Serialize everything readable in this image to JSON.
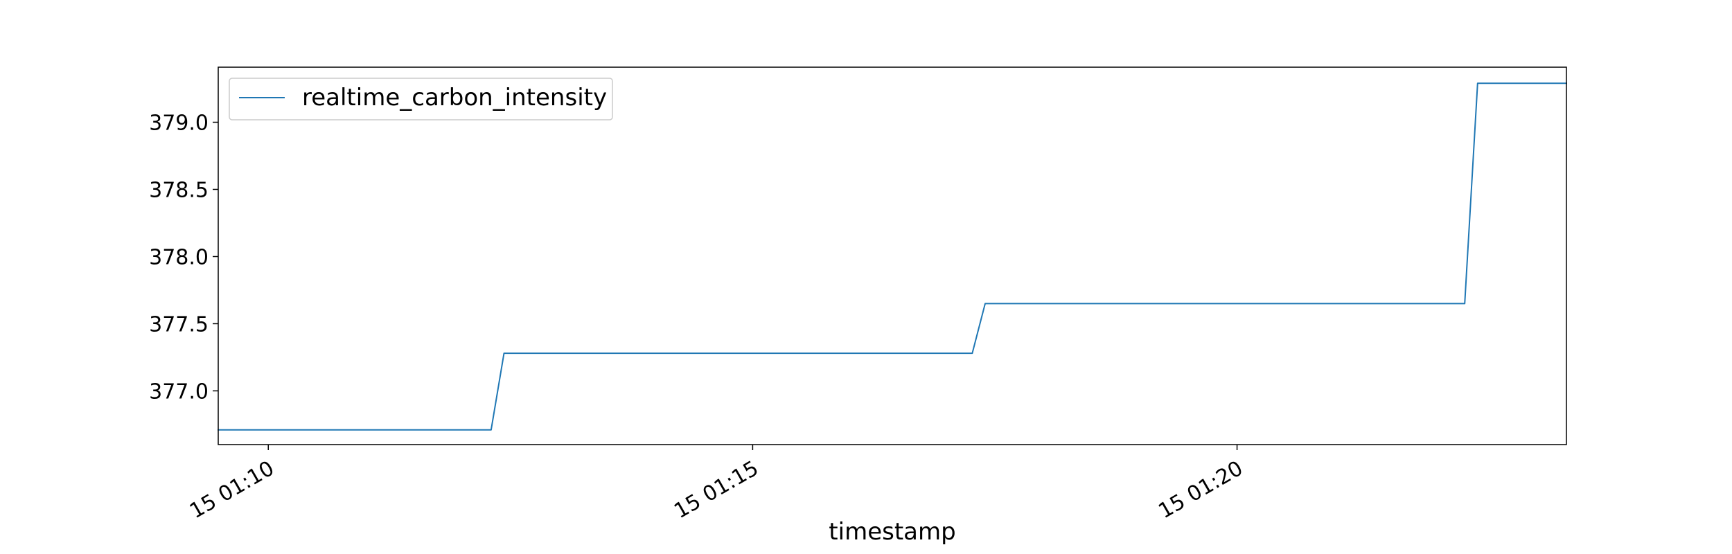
{
  "chart_data": {
    "type": "line",
    "title": "",
    "xlabel": "timestamp",
    "ylabel": "",
    "grid": false,
    "legend_position": "top-left",
    "x_axis": {
      "type": "time",
      "range": [
        "01:09:29",
        "01:23:24"
      ],
      "ticks": [
        "01:10:00",
        "01:15:00",
        "01:20:00"
      ],
      "tick_labels": [
        "15 01:10",
        "15 01:15",
        "15 01:20"
      ]
    },
    "y_axis": {
      "range": [
        376.6,
        379.41
      ],
      "ticks": [
        377.0,
        377.5,
        378.0,
        378.5,
        379.0
      ],
      "tick_labels": [
        "377.0",
        "377.5",
        "378.0",
        "378.5",
        "379.0"
      ]
    },
    "series": [
      {
        "name": "realtime_carbon_intensity",
        "color": "#1f77b4",
        "x": [
          "01:09:29",
          "01:12:18",
          "01:12:26",
          "01:17:16",
          "01:17:24",
          "01:22:21",
          "01:22:29",
          "01:23:24"
        ],
        "y": [
          376.71,
          376.71,
          377.28,
          377.28,
          377.65,
          377.65,
          379.29,
          379.29
        ]
      }
    ]
  }
}
